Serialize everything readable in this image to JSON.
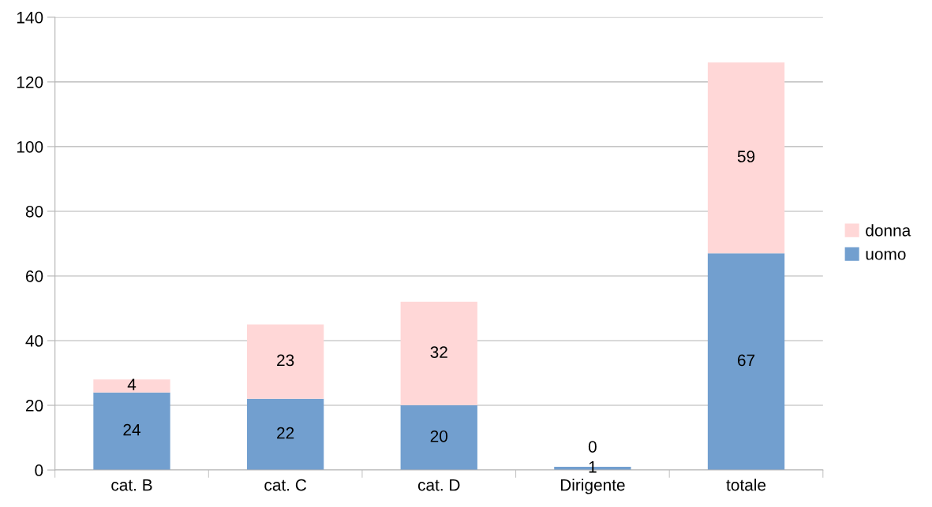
{
  "chart_data": {
    "type": "bar",
    "stacked": true,
    "categories": [
      "cat. B",
      "cat. C",
      "cat. D",
      "Dirigente",
      "totale"
    ],
    "series": [
      {
        "name": "uomo",
        "color": "#729fcf",
        "values": [
          24,
          22,
          20,
          1,
          67
        ]
      },
      {
        "name": "donna",
        "color": "#ffd7d7",
        "values": [
          4,
          23,
          32,
          0,
          59
        ]
      }
    ],
    "ylim": [
      0,
      140
    ],
    "yticks": [
      0,
      20,
      40,
      60,
      80,
      100,
      120,
      140
    ],
    "grid": "y",
    "legend": "right",
    "data_labels": true
  }
}
